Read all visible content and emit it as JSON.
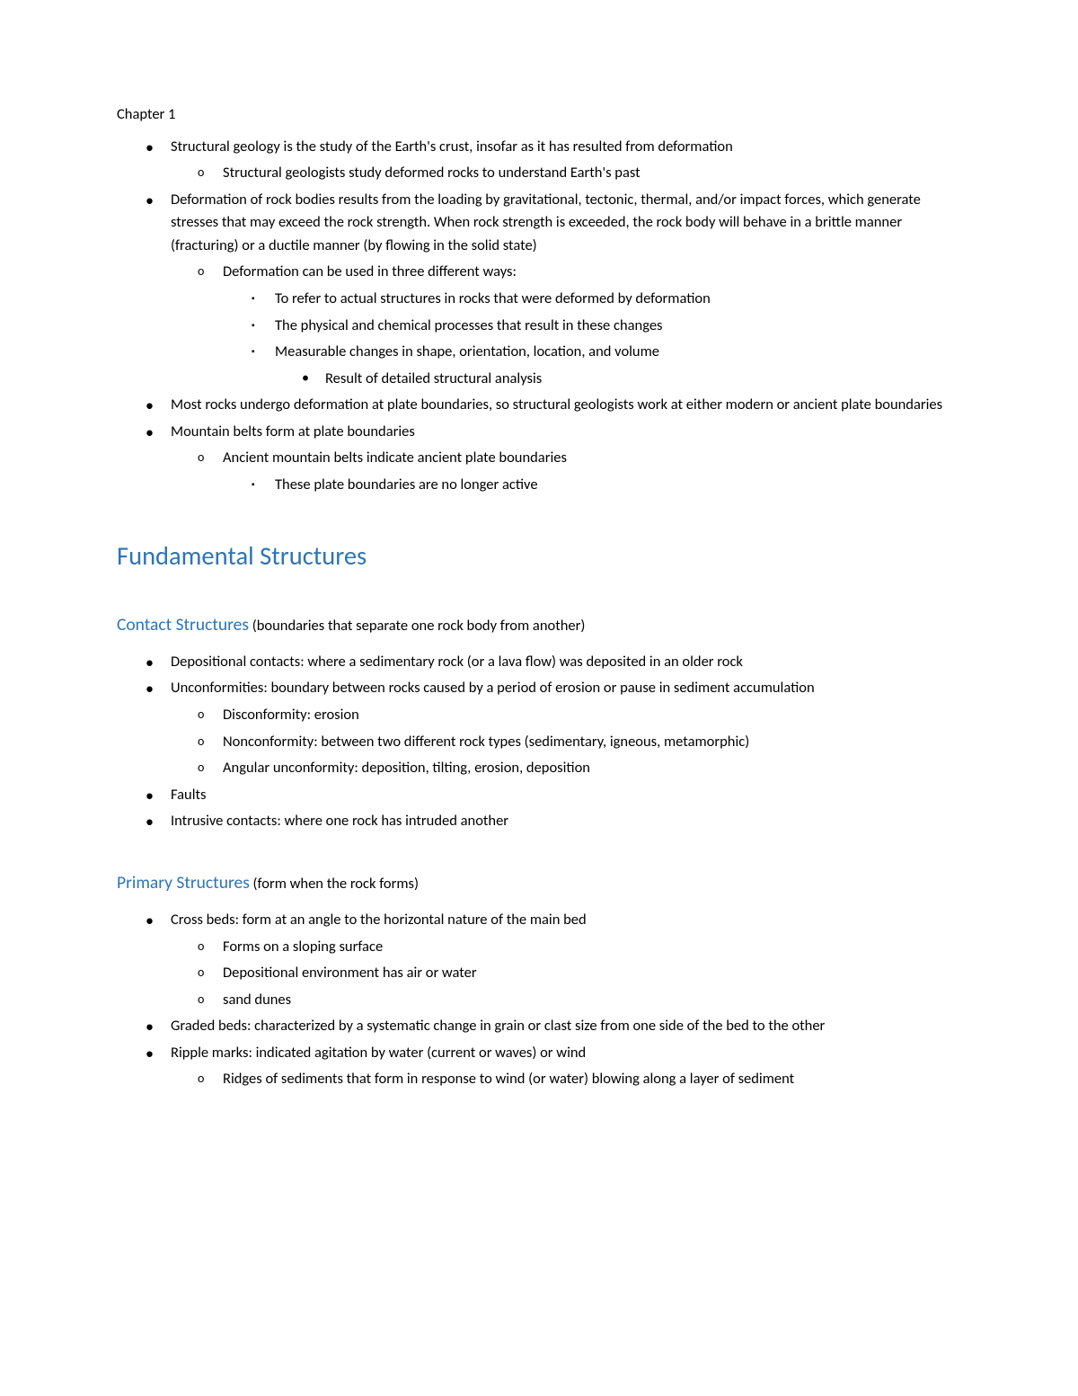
{
  "chapter": "Chapter 1",
  "intro": {
    "items": [
      {
        "text": "Structural geology is the study of the Earth's crust, insofar as it has resulted from deformation",
        "sub": [
          {
            "text": "Structural geologists study deformed rocks to understand Earth's past"
          }
        ]
      },
      {
        "text": "Deformation of rock bodies results from the loading by gravitational, tectonic, thermal, and/or impact forces, which generate stresses that may exceed the rock strength. When rock strength is exceeded, the rock body will behave in a brittle manner (fracturing) or a ductile manner (by flowing in the solid state)",
        "sub": [
          {
            "text": "Deformation can be used in three different ways:",
            "sub": [
              {
                "text": "To refer to actual structures in rocks that were deformed by deformation"
              },
              {
                "text": "The physical and chemical processes that result in these changes"
              },
              {
                "text": "Measurable changes in shape, orientation, location, and volume",
                "sub": [
                  {
                    "text": "Result of detailed structural analysis"
                  }
                ]
              }
            ]
          }
        ]
      },
      {
        "text": "Most rocks undergo deformation at plate boundaries, so structural geologists work at either modern or ancient plate boundaries"
      },
      {
        "text": "Mountain belts form at plate boundaries",
        "sub": [
          {
            "text": "Ancient mountain belts indicate ancient plate boundaries",
            "sub": [
              {
                "text": "These plate boundaries are no longer active"
              }
            ]
          }
        ]
      }
    ]
  },
  "section1": {
    "title": "Fundamental Structures"
  },
  "contact": {
    "title": "Contact Structures",
    "note": " (boundaries that separate one rock body from another)",
    "items": [
      {
        "text": "Depositional contacts: where a sedimentary rock (or a lava flow) was deposited in an older rock"
      },
      {
        "text": "Unconformities: boundary between rocks caused by a period of erosion or pause in sediment accumulation",
        "sub": [
          {
            "text": "Disconformity: erosion"
          },
          {
            "text": "Nonconformity: between two different rock types (sedimentary, igneous, metamorphic)"
          },
          {
            "text": "Angular unconformity: deposition, tilting, erosion, deposition"
          }
        ]
      },
      {
        "text": "Faults"
      },
      {
        "text": "Intrusive contacts: where one rock has intruded another"
      }
    ]
  },
  "primary": {
    "title": "Primary Structures",
    "note": " (form when the rock forms)",
    "items": [
      {
        "text": "Cross beds: form at an angle to the horizontal nature of the main bed",
        "sub": [
          {
            "text": "Forms on a sloping surface"
          },
          {
            "text": "Depositional environment has air or water"
          },
          {
            "text": "sand dunes"
          }
        ]
      },
      {
        "text": "Graded beds: characterized by a systematic change in grain or clast size from one side of the bed to the other"
      },
      {
        "text": "Ripple marks: indicated agitation by water (current or waves) or wind",
        "sub": [
          {
            "text": "Ridges of sediments that form in response to wind (or water) blowing along a layer of sediment"
          }
        ]
      }
    ]
  },
  "colors": {
    "heading": "#2e74b5",
    "text": "#000000",
    "background": "#ffffff"
  }
}
